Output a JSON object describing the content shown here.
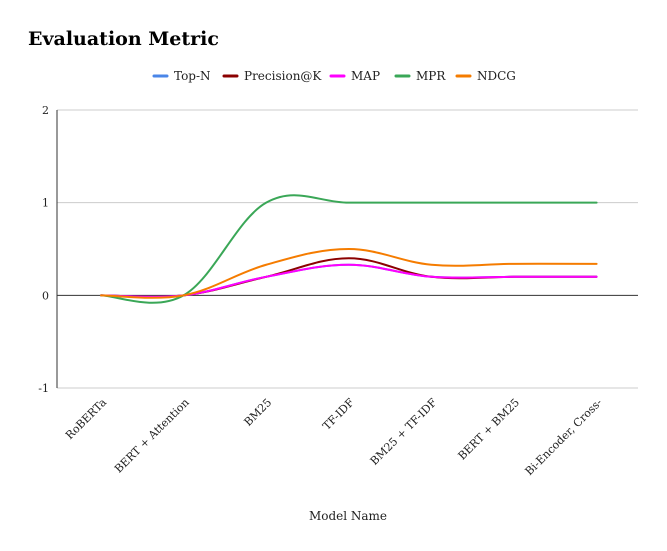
{
  "chart_data": {
    "type": "line",
    "title": "Evaluation Metric",
    "xlabel": "Model Name",
    "ylabel": "",
    "ylim": [
      -1,
      2
    ],
    "yticks": [
      "2",
      "1",
      "0",
      "-1"
    ],
    "categories": [
      "RoBERTa",
      "BERT + Attention",
      "BM25",
      "TF-IDF",
      "BM25 + TF-IDF",
      "BERT + BM25",
      "Bi-Encoder, Cross-"
    ],
    "legend_position": "top",
    "grid": true,
    "smooth": true,
    "series": [
      {
        "name": "Top-N",
        "color": "#4a86e8",
        "values": [
          0,
          0,
          0.2,
          0.33,
          0.2,
          0.2,
          0.2
        ]
      },
      {
        "name": "Precision@K",
        "color": "#8b0000",
        "values": [
          0,
          0,
          0.2,
          0.4,
          0.2,
          0.2,
          0.2
        ]
      },
      {
        "name": "MAP",
        "color": "#ff00ff",
        "values": [
          0,
          0,
          0.2,
          0.33,
          0.2,
          0.2,
          0.2
        ]
      },
      {
        "name": "MPR",
        "color": "#3aa757",
        "values": [
          0,
          0,
          1,
          1,
          1,
          1,
          1
        ]
      },
      {
        "name": "NDCG",
        "color": "#f57c00",
        "values": [
          0,
          0,
          0.33,
          0.5,
          0.33,
          0.34,
          0.34
        ]
      }
    ]
  }
}
